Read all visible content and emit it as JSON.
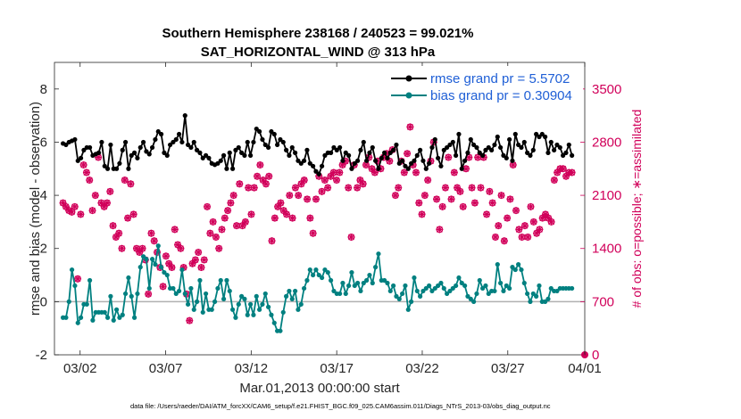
{
  "chart_data": {
    "type": "line",
    "title_line1": "Southern Hemisphere 238168 / 240523 = 99.021%",
    "title_line2": "SAT_HORIZONTAL_WIND @ 313 hPa",
    "xlabel": "Mar.01,2013 00:00:00 start",
    "ylabel": "rmse and bias (model - observation)",
    "ylabel_right": "# of obs: o=possible; ∗=assimilated",
    "xlim": [
      0.5,
      31.5
    ],
    "ylim": [
      -2,
      9
    ],
    "ylim_right": [
      0,
      3850
    ],
    "x_ticks": [
      {
        "x": 2,
        "label": "03/02"
      },
      {
        "x": 7,
        "label": "03/07"
      },
      {
        "x": 12,
        "label": "03/12"
      },
      {
        "x": 17,
        "label": "03/17"
      },
      {
        "x": 22,
        "label": "03/22"
      },
      {
        "x": 27,
        "label": "03/27"
      },
      {
        "x": 32,
        "label": "04/01"
      }
    ],
    "y_ticks": [
      -2,
      0,
      2,
      4,
      6,
      8
    ],
    "y_ticks_right": [
      0,
      700,
      1400,
      2100,
      2800,
      3500
    ],
    "legend": {
      "position": "top-right",
      "entries": [
        {
          "label": "rmse grand pr = 5.5702",
          "color": "#000000"
        },
        {
          "label": "bias grand pr = 0.30904",
          "color": "#008080"
        }
      ]
    },
    "series": [
      {
        "name": "rmse",
        "color": "#000000",
        "values": [
          5.95,
          5.9,
          6.0,
          6.05,
          6.1,
          5.3,
          5.4,
          5.7,
          5.8,
          5.8,
          5.5,
          5.55,
          5.6,
          6.0,
          5.1,
          5.0,
          5.9,
          5.0,
          5.0,
          5.2,
          5.7,
          6.0,
          5.0,
          5.5,
          5.6,
          5.4,
          5.8,
          6.0,
          5.65,
          5.55,
          5.8,
          6.1,
          6.4,
          6.3,
          5.6,
          5.5,
          5.9,
          6.0,
          6.1,
          6.3,
          6.0,
          7.0,
          5.9,
          5.8,
          6.0,
          5.7,
          5.6,
          5.4,
          5.5,
          5.4,
          5.2,
          5.15,
          5.2,
          5.3,
          5.5,
          5.0,
          5.6,
          5.0,
          5.7,
          5.8,
          5.6,
          5.5,
          6.0,
          5.5,
          6.0,
          6.5,
          6.4,
          6.1,
          5.9,
          5.8,
          6.4,
          6.3,
          5.9,
          6.1,
          6.0,
          5.7,
          5.5,
          5.8,
          5.6,
          5.3,
          5.2,
          5.3,
          5.7,
          5.2,
          5.1,
          4.9,
          4.8,
          5.1,
          5.5,
          5.6,
          5.6,
          5.8,
          5.7,
          5.8,
          5.3,
          5.6,
          5.5,
          5.0,
          5.2,
          5.3,
          5.7,
          6.0,
          5.3,
          5.6,
          5.8,
          5.3,
          5.0,
          5.4,
          5.6,
          5.4,
          5.6,
          5.7,
          5.9,
          5.2,
          5.3,
          5.1,
          5.0,
          5.2,
          5.3,
          5.5,
          5.7,
          5.3,
          5.0,
          5.2,
          5.8,
          6.1,
          5.4,
          5.1,
          5.7,
          5.8,
          5.9,
          6.0,
          5.5,
          6.3,
          5.0,
          5.3,
          5.6,
          6.1,
          5.9,
          5.8,
          5.6,
          5.5,
          5.7,
          5.8,
          5.7,
          5.9,
          6.2,
          5.8,
          5.5,
          5.4,
          6.1,
          5.3,
          6.3,
          5.9,
          5.8,
          6.0,
          5.6,
          5.5,
          5.7,
          6.3,
          6.2,
          6.3,
          6.2,
          5.6,
          6.0,
          5.7,
          5.9,
          5.8,
          5.5,
          5.6,
          5.9,
          5.5
        ],
        "marker": "filled-circle"
      },
      {
        "name": "bias",
        "color": "#008080",
        "values": [
          -0.6,
          -0.6,
          0.0,
          1.2,
          0.6,
          -0.8,
          -0.6,
          -0.1,
          -0.1,
          0.8,
          -0.7,
          -0.4,
          -0.4,
          -0.4,
          -0.4,
          -0.6,
          0.2,
          -0.7,
          -0.3,
          -0.6,
          -0.5,
          0.3,
          0.9,
          0.2,
          -0.6,
          0.3,
          1.3,
          1.7,
          1.6,
          0.5,
          1.6,
          1.4,
          2.1,
          1.3,
          1.1,
          1.0,
          0.5,
          0.5,
          0.3,
          0.4,
          1.2,
          0.3,
          -0.1,
          0.5,
          -0.3,
          0.0,
          0.8,
          -0.4,
          0.3,
          -0.3,
          -0.3,
          0.0,
          0.5,
          0.8,
          0.1,
          0.8,
          0.4,
          -0.3,
          -0.6,
          -0.1,
          0.2,
          0.1,
          -0.5,
          -0.1,
          -0.5,
          0.2,
          -0.3,
          -0.1,
          0.3,
          -0.2,
          -0.5,
          -0.8,
          -1.1,
          -1.1,
          -0.4,
          0.2,
          0.4,
          0.1,
          0.4,
          -0.3,
          -0.1,
          0.5,
          0.8,
          1.2,
          1.0,
          1.2,
          1.0,
          0.9,
          1.2,
          1.1,
          0.8,
          0.4,
          0.3,
          0.3,
          0.7,
          0.3,
          0.6,
          1.1,
          0.6,
          0.7,
          0.4,
          0.7,
          0.8,
          1.0,
          0.7,
          1.3,
          1.8,
          0.8,
          0.8,
          0.7,
          0.4,
          0.6,
          0.2,
          0.1,
          0.3,
          0.6,
          -0.3,
          0.0,
          0.9,
          0.4,
          0.2,
          0.4,
          0.5,
          0.6,
          0.4,
          0.5,
          0.6,
          0.7,
          0.5,
          0.3,
          0.4,
          0.5,
          0.6,
          0.9,
          0.7,
          0.6,
          0.2,
          0.1,
          0.0,
          0.3,
          0.8,
          0.5,
          0.6,
          0.3,
          0.4,
          0.4,
          1.4,
          0.7,
          0.4,
          0.6,
          0.5,
          1.3,
          1.2,
          1.4,
          1.2,
          0.7,
          0.3,
          0.0,
          0.3,
          0.2,
          0.6,
          0.0,
          0.0,
          0.1,
          0.5,
          0.4,
          0.4,
          0.5,
          0.5,
          0.5,
          0.5,
          0.5
        ],
        "marker": "filled-circle"
      },
      {
        "name": "possible",
        "color": "#d1005a",
        "marker": "circle",
        "values": [
          2000,
          1950,
          1900,
          1880,
          1950,
          1000,
          1850,
          2500,
          2400,
          2300,
          1900,
          2100,
          2600,
          2000,
          1950,
          2000,
          2150,
          1700,
          1550,
          1600,
          1400,
          2300,
          1800,
          2250,
          1850,
          1400,
          1350,
          1400,
          1250,
          800,
          1600,
          1500,
          1350,
          1150,
          900,
          1300,
          1200,
          1150,
          1650,
          1450,
          1400,
          1150,
          800,
          450,
          1200,
          1250,
          1350,
          1150,
          1250,
          1950,
          1600,
          1750,
          1550,
          1400,
          1650,
          1800,
          1900,
          2000,
          2100,
          1700,
          2250,
          1700,
          1750,
          2200,
          1850,
          2200,
          2350,
          2500,
          2300,
          2250,
          2350,
          1500,
          1800,
          1950,
          2000,
          1900,
          1850,
          2100,
          1800,
          2200,
          2100,
          2250,
          2300,
          2050,
          1800,
          1600,
          2050,
          2350,
          2150,
          2300,
          2200,
          2350,
          2400,
          2300,
          2400,
          2500,
          2550,
          2200,
          1550,
          2500,
          2200,
          2300,
          2250,
          2500,
          2600,
          2450,
          2400,
          2550,
          2450,
          2600,
          2650,
          2550,
          2700,
          2100,
          2200,
          2550,
          2400,
          2650,
          3000,
          2500,
          2400,
          2000,
          1850,
          2100,
          2300,
          2550,
          2800,
          2050,
          1650,
          1950,
          2200,
          2600,
          2050,
          2400,
          2200,
          2150,
          1950,
          2450,
          2600,
          2200,
          2000,
          2600,
          2200,
          2600,
          1850,
          2150,
          2000,
          1550,
          1700,
          2100,
          1500,
          1800,
          2050,
          2500,
          1900,
          1650,
          1550,
          1700,
          1550,
          1950,
          1750,
          1600,
          1650,
          1800,
          1850,
          1800,
          1750,
          2300,
          2400,
          2450,
          2450,
          2350,
          2400,
          2400
        ]
      }
    ],
    "possible_end_value": 0
  },
  "footer": "data file: /Users/raeder/DAI/ATM_forcXX/CAM6_setup/f.e21.FHIST_BGC.f09_025.CAM6assim.011/Diags_NTrS_2013-03/obs_diag_output.nc"
}
